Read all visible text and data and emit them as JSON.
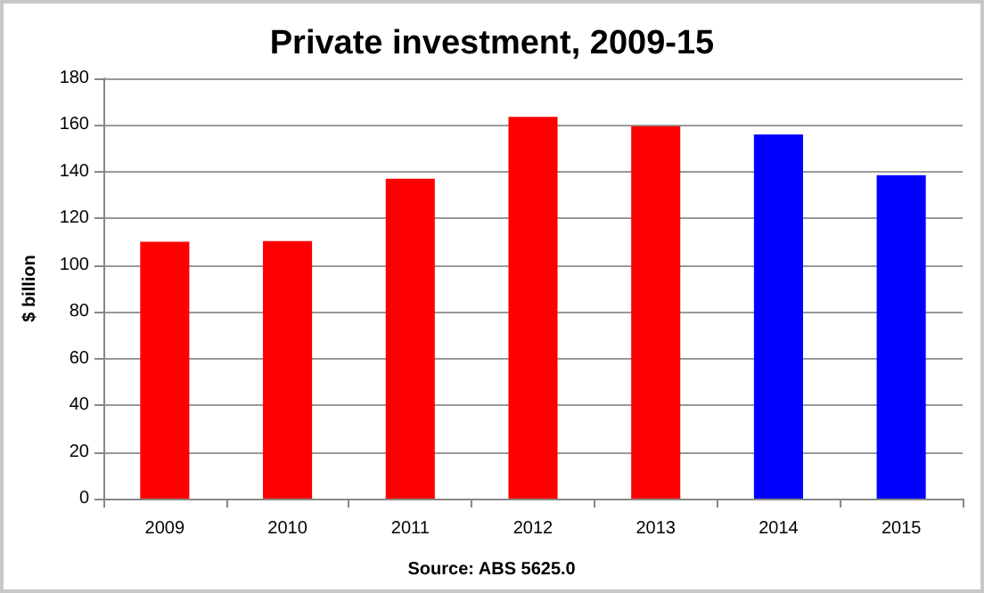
{
  "chart_data": {
    "type": "bar",
    "title": "Private investment, 2009-15",
    "ylabel": "$ billion",
    "annotations": [
      "Source: ABS 5625.0"
    ],
    "categories": [
      "2009",
      "2010",
      "2011",
      "2012",
      "2013",
      "2014",
      "2015"
    ],
    "values": [
      110,
      110.3,
      137,
      163.5,
      159.5,
      156,
      138.5
    ],
    "colors": [
      "#ff0000",
      "#ff0000",
      "#ff0000",
      "#ff0000",
      "#ff0000",
      "#0000ff",
      "#0000ff"
    ],
    "ylim": [
      0,
      180
    ],
    "yticks": [
      0,
      20,
      40,
      60,
      80,
      100,
      120,
      140,
      160,
      180
    ],
    "grid": "y"
  }
}
